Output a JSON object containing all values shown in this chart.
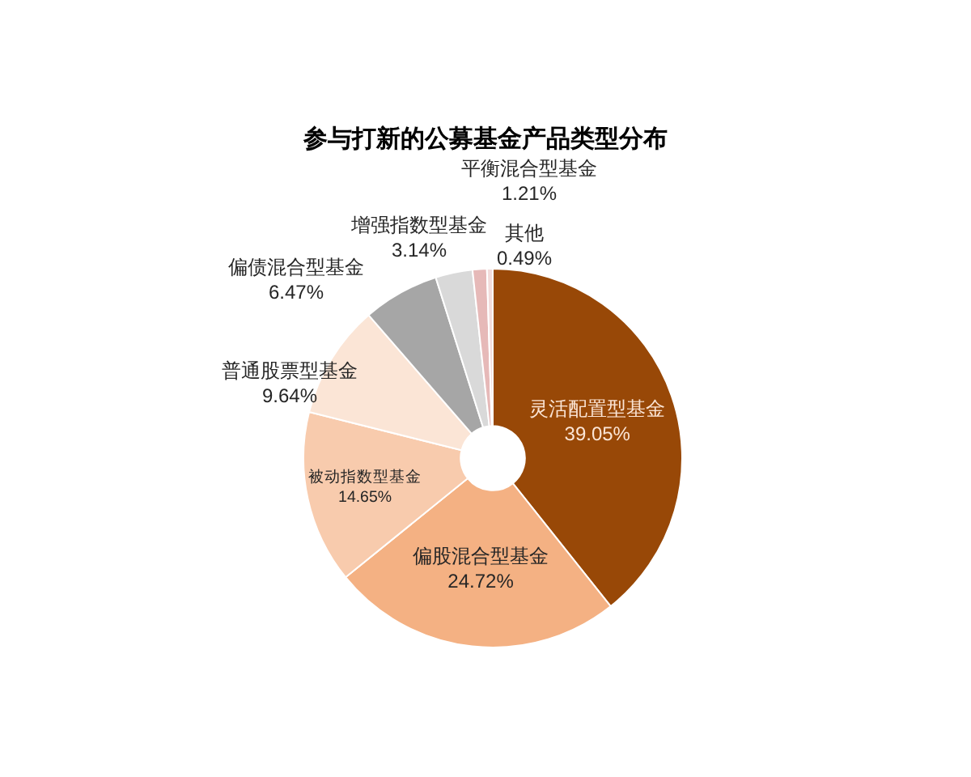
{
  "chart_data": {
    "type": "donut",
    "title": "参与打新的公募基金产品类型分布",
    "categories": [
      "灵活配置型基金",
      "偏股混合型基金",
      "被动指数型基金",
      "普通股票型基金",
      "偏债混合型基金",
      "增强指数型基金",
      "平衡混合型基金",
      "其他"
    ],
    "values": [
      39.05,
      24.72,
      14.65,
      9.64,
      6.47,
      3.14,
      1.21,
      0.49
    ],
    "colors": [
      "#984807",
      "#f4b183",
      "#f8cbad",
      "#fbe5d6",
      "#a6a6a6",
      "#d9d9d9",
      "#e6b9b8",
      "#f2dcdb"
    ],
    "value_labels": [
      "39.05%",
      "24.72%",
      "14.65%",
      "9.64%",
      "6.47%",
      "3.14%",
      "1.21%",
      "0.49%"
    ],
    "legend": false
  }
}
